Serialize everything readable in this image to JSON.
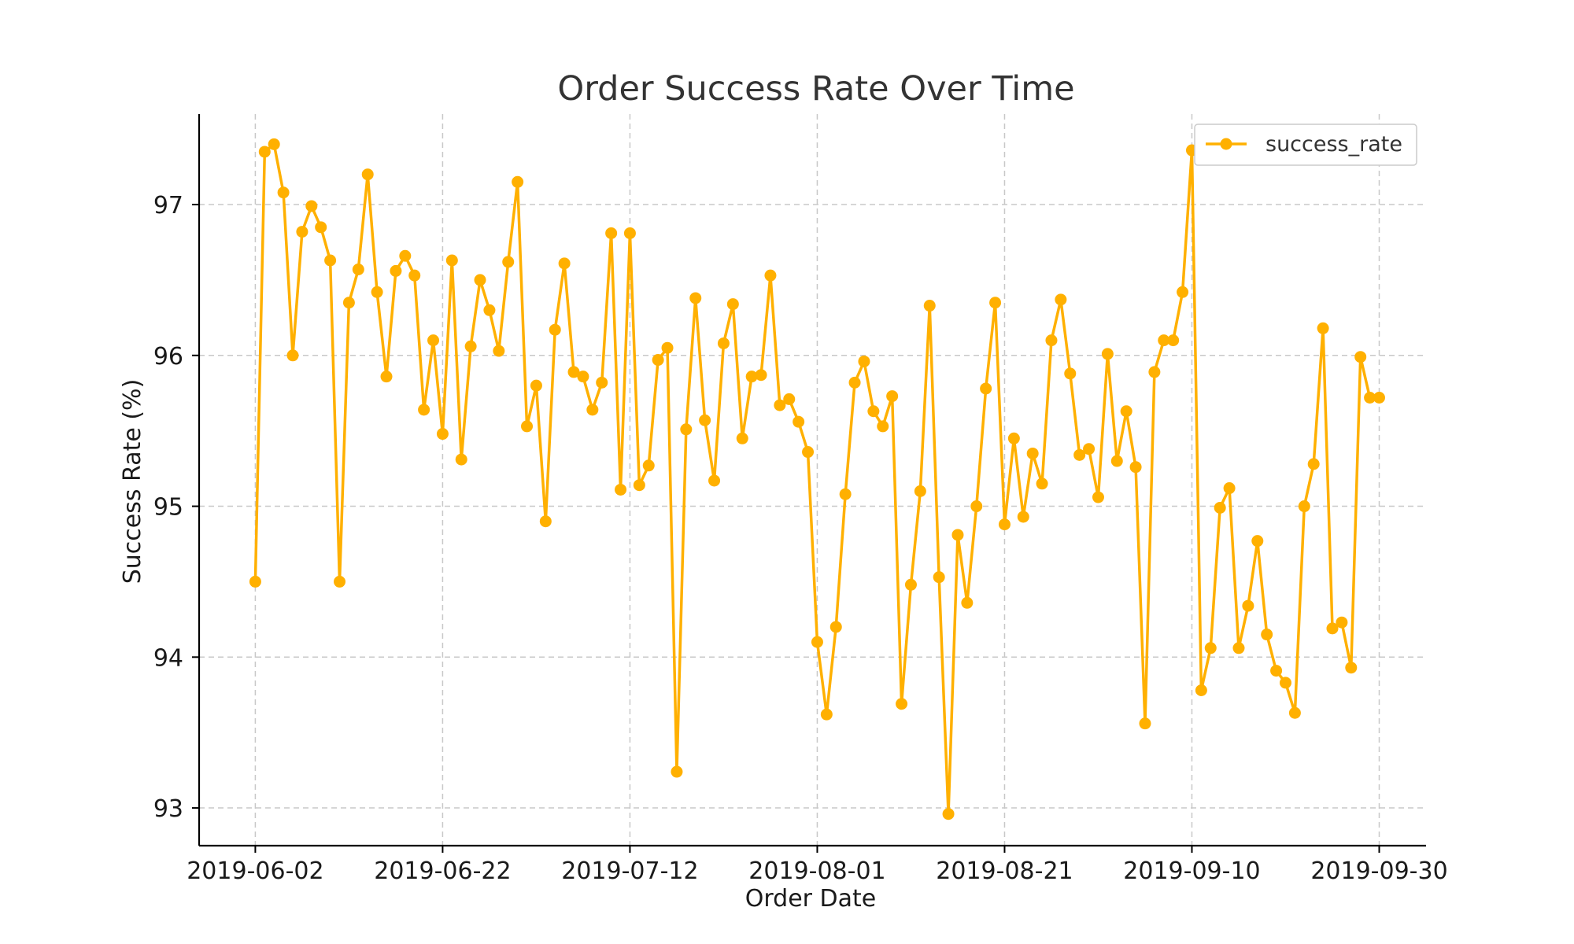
{
  "chart_data": {
    "type": "line",
    "title": "Order Success Rate Over Time",
    "xlabel": "Order Date",
    "ylabel": "Success Rate (%)",
    "x_ticks": [
      "2019-06-02",
      "2019-06-22",
      "2019-07-12",
      "2019-08-01",
      "2019-08-21",
      "2019-09-10",
      "2019-09-30"
    ],
    "y_ticks": [
      93,
      94,
      95,
      96,
      97
    ],
    "xlim": [
      "2019-05-27",
      "2019-10-05"
    ],
    "ylim": [
      92.75,
      97.6
    ],
    "grid": true,
    "legend_position": "top-right",
    "series": [
      {
        "name": "success_rate",
        "color": "#FFB000",
        "marker": "circle",
        "x": [
          "2019-06-02",
          "2019-06-03",
          "2019-06-04",
          "2019-06-05",
          "2019-06-06",
          "2019-06-07",
          "2019-06-08",
          "2019-06-09",
          "2019-06-10",
          "2019-06-11",
          "2019-06-12",
          "2019-06-13",
          "2019-06-14",
          "2019-06-15",
          "2019-06-16",
          "2019-06-17",
          "2019-06-18",
          "2019-06-19",
          "2019-06-20",
          "2019-06-21",
          "2019-06-22",
          "2019-06-23",
          "2019-06-24",
          "2019-06-25",
          "2019-06-26",
          "2019-06-27",
          "2019-06-28",
          "2019-06-29",
          "2019-06-30",
          "2019-07-01",
          "2019-07-02",
          "2019-07-03",
          "2019-07-04",
          "2019-07-05",
          "2019-07-06",
          "2019-07-07",
          "2019-07-08",
          "2019-07-09",
          "2019-07-10",
          "2019-07-11",
          "2019-07-12",
          "2019-07-13",
          "2019-07-14",
          "2019-07-15",
          "2019-07-16",
          "2019-07-17",
          "2019-07-18",
          "2019-07-19",
          "2019-07-20",
          "2019-07-21",
          "2019-07-22",
          "2019-07-23",
          "2019-07-24",
          "2019-07-25",
          "2019-07-26",
          "2019-07-27",
          "2019-07-28",
          "2019-07-29",
          "2019-07-30",
          "2019-07-31",
          "2019-08-01",
          "2019-08-02",
          "2019-08-03",
          "2019-08-04",
          "2019-08-05",
          "2019-08-06",
          "2019-08-07",
          "2019-08-08",
          "2019-08-09",
          "2019-08-10",
          "2019-08-11",
          "2019-08-12",
          "2019-08-13",
          "2019-08-14",
          "2019-08-15",
          "2019-08-16",
          "2019-08-17",
          "2019-08-18",
          "2019-08-19",
          "2019-08-20",
          "2019-08-21",
          "2019-08-22",
          "2019-08-23",
          "2019-08-24",
          "2019-08-25",
          "2019-08-26",
          "2019-08-27",
          "2019-08-28",
          "2019-08-29",
          "2019-08-30",
          "2019-08-31",
          "2019-09-01",
          "2019-09-02",
          "2019-09-03",
          "2019-09-04",
          "2019-09-05",
          "2019-09-06",
          "2019-09-07",
          "2019-09-08",
          "2019-09-09",
          "2019-09-10",
          "2019-09-11",
          "2019-09-12",
          "2019-09-13",
          "2019-09-14",
          "2019-09-15",
          "2019-09-16",
          "2019-09-17",
          "2019-09-18",
          "2019-09-19",
          "2019-09-20",
          "2019-09-21",
          "2019-09-22",
          "2019-09-23",
          "2019-09-24",
          "2019-09-25",
          "2019-09-26",
          "2019-09-27",
          "2019-09-28",
          "2019-09-29",
          "2019-09-30"
        ],
        "values": [
          94.5,
          97.35,
          97.4,
          97.08,
          96.0,
          96.82,
          96.99,
          96.85,
          96.63,
          94.5,
          96.35,
          96.57,
          97.2,
          96.42,
          95.86,
          96.56,
          96.66,
          96.53,
          95.64,
          96.1,
          95.48,
          96.63,
          95.31,
          96.06,
          96.5,
          96.3,
          96.03,
          96.62,
          97.15,
          95.53,
          95.8,
          94.9,
          96.17,
          96.61,
          95.89,
          95.86,
          95.64,
          95.82,
          96.81,
          95.11,
          96.81,
          95.14,
          95.27,
          95.97,
          96.05,
          93.24,
          95.51,
          96.38,
          95.57,
          95.17,
          96.08,
          96.34,
          95.45,
          95.86,
          95.87,
          96.53,
          95.67,
          95.71,
          95.56,
          95.36,
          94.1,
          93.62,
          94.2,
          95.08,
          95.82,
          95.96,
          95.63,
          95.53,
          95.73,
          93.69,
          94.48,
          95.1,
          96.33,
          94.53,
          92.96,
          94.81,
          94.36,
          95.0,
          95.78,
          96.35,
          94.88,
          95.45,
          94.93,
          95.35,
          95.15,
          96.1,
          96.37,
          95.88,
          95.34,
          95.38,
          95.06,
          96.01,
          95.3,
          95.63,
          95.26,
          93.56,
          95.89,
          96.1,
          96.1,
          96.42,
          97.36,
          93.78,
          94.06,
          94.99,
          95.12,
          94.06,
          94.34,
          94.77,
          94.15,
          93.91,
          93.83,
          93.63,
          95.0,
          95.28,
          96.18,
          94.19,
          94.23,
          93.93,
          95.99,
          95.72,
          95.72
        ]
      }
    ]
  }
}
